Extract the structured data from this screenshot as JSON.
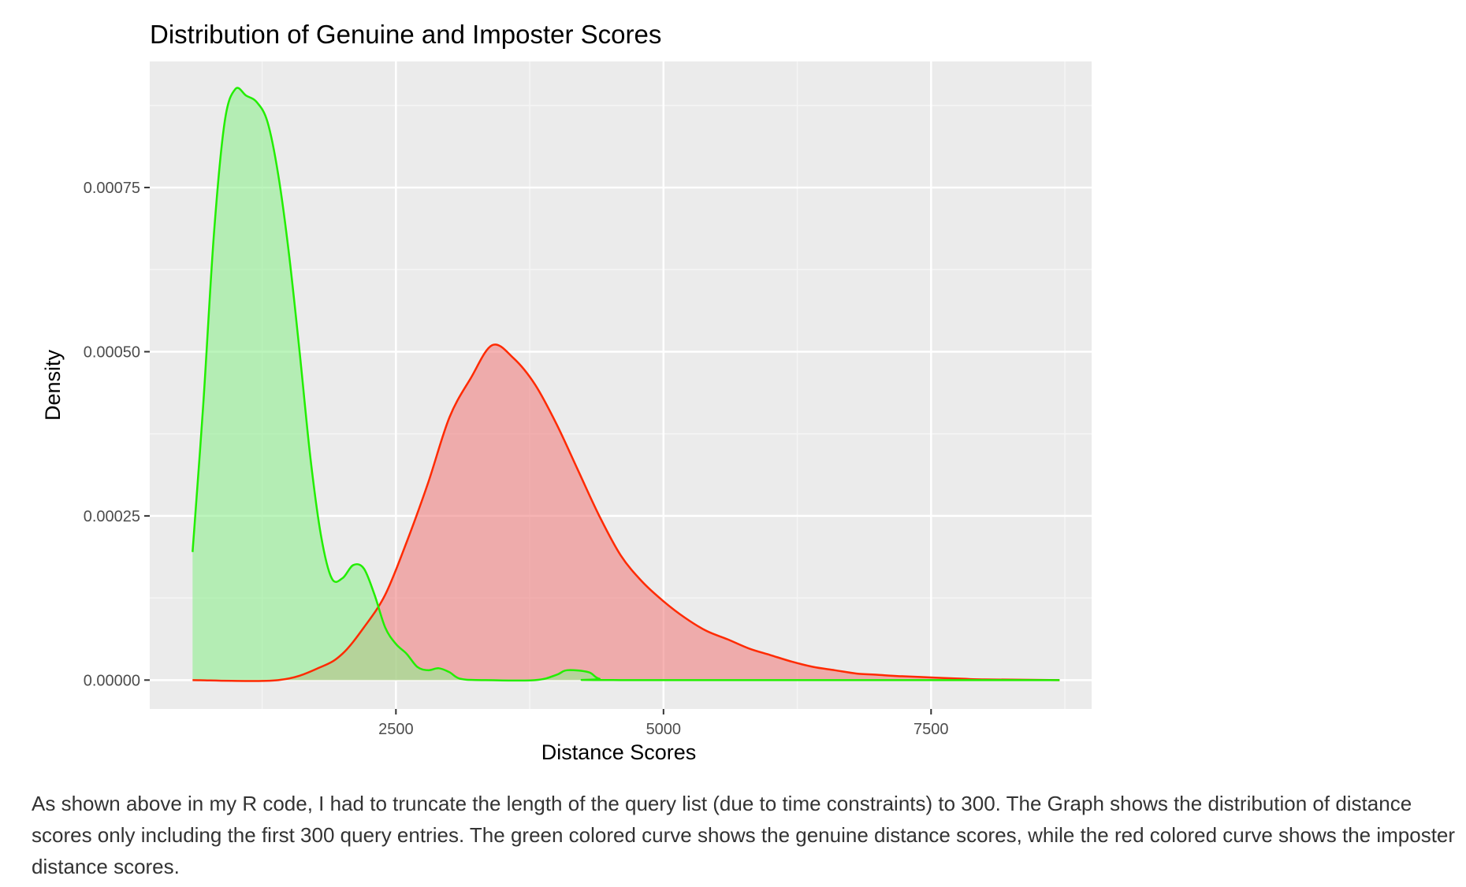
{
  "chart_data": {
    "type": "area",
    "title": "Distribution of Genuine and Imposter Scores",
    "xlabel": "Distance Scores",
    "ylabel": "Density",
    "xlim": [
      200,
      9000
    ],
    "ylim": [
      -4.4e-05,
      0.000942
    ],
    "x_ticks": [
      2500,
      5000,
      7500
    ],
    "x_tick_labels": [
      "2500",
      "5000",
      "7500"
    ],
    "y_ticks": [
      0,
      0.00025,
      0.0005,
      0.00075
    ],
    "y_tick_labels": [
      "0.00000",
      "0.00025",
      "0.00050",
      "0.00075"
    ],
    "grid": true,
    "legend": "none",
    "series": [
      {
        "color": "#ff2a00",
        "fill": "#f08080",
        "points": [
          [
            600,
            0
          ],
          [
            1400,
            0
          ],
          [
            1800,
            2e-05
          ],
          [
            2000,
            4e-05
          ],
          [
            2200,
            8e-05
          ],
          [
            2400,
            0.00013
          ],
          [
            2600,
            0.00021
          ],
          [
            2800,
            0.0003
          ],
          [
            3000,
            0.0004
          ],
          [
            3200,
            0.00046
          ],
          [
            3400,
            0.00051
          ],
          [
            3600,
            0.00049
          ],
          [
            3800,
            0.00045
          ],
          [
            4000,
            0.00039
          ],
          [
            4200,
            0.00032
          ],
          [
            4400,
            0.00025
          ],
          [
            4600,
            0.00019
          ],
          [
            4800,
            0.00015
          ],
          [
            5000,
            0.00012
          ],
          [
            5200,
            9.5e-05
          ],
          [
            5400,
            7.5e-05
          ],
          [
            5600,
            6.2e-05
          ],
          [
            5800,
            4.8e-05
          ],
          [
            6000,
            3.8e-05
          ],
          [
            6200,
            2.8e-05
          ],
          [
            6400,
            2e-05
          ],
          [
            6600,
            1.5e-05
          ],
          [
            6800,
            1e-05
          ],
          [
            7000,
            8e-06
          ],
          [
            7200,
            6e-06
          ],
          [
            7500,
            4e-06
          ],
          [
            7800,
            2e-06
          ],
          [
            8000,
            1e-06
          ],
          [
            8700,
            0
          ]
        ]
      },
      {
        "color": "#22ee00",
        "fill": "#90ee90",
        "points": [
          [
            600,
            0.000195
          ],
          [
            700,
            0.00042
          ],
          [
            800,
            0.00068
          ],
          [
            900,
            0.00085
          ],
          [
            1000,
            0.0009
          ],
          [
            1100,
            0.00089
          ],
          [
            1200,
            0.00088
          ],
          [
            1300,
            0.00085
          ],
          [
            1400,
            0.00077
          ],
          [
            1500,
            0.00065
          ],
          [
            1600,
            0.0005
          ],
          [
            1700,
            0.00034
          ],
          [
            1800,
            0.00022
          ],
          [
            1900,
            0.000155
          ],
          [
            2000,
            0.000155
          ],
          [
            2100,
            0.000175
          ],
          [
            2200,
            0.00017
          ],
          [
            2300,
            0.00013
          ],
          [
            2400,
            8e-05
          ],
          [
            2500,
            5.5e-05
          ],
          [
            2600,
            4e-05
          ],
          [
            2700,
            2e-05
          ],
          [
            2800,
            1.5e-05
          ],
          [
            2900,
            1.8e-05
          ],
          [
            3000,
            1.2e-05
          ],
          [
            3100,
            2e-06
          ],
          [
            3300,
            0
          ],
          [
            3800,
            0
          ],
          [
            4000,
            8e-06
          ],
          [
            4100,
            1.5e-05
          ],
          [
            4300,
            1.2e-05
          ],
          [
            4400,
            2e-06
          ],
          [
            4600,
            0
          ],
          [
            8700,
            0
          ]
        ]
      }
    ]
  },
  "caption": {
    "text": "As shown above in my R code, I had to truncate the length of the query list (due to time constraints) to 300. The Graph shows the distribution of distance scores only including the first 300 query entries. The green colored curve shows the genuine distance scores, while the red colored curve shows the imposter distance scores."
  }
}
